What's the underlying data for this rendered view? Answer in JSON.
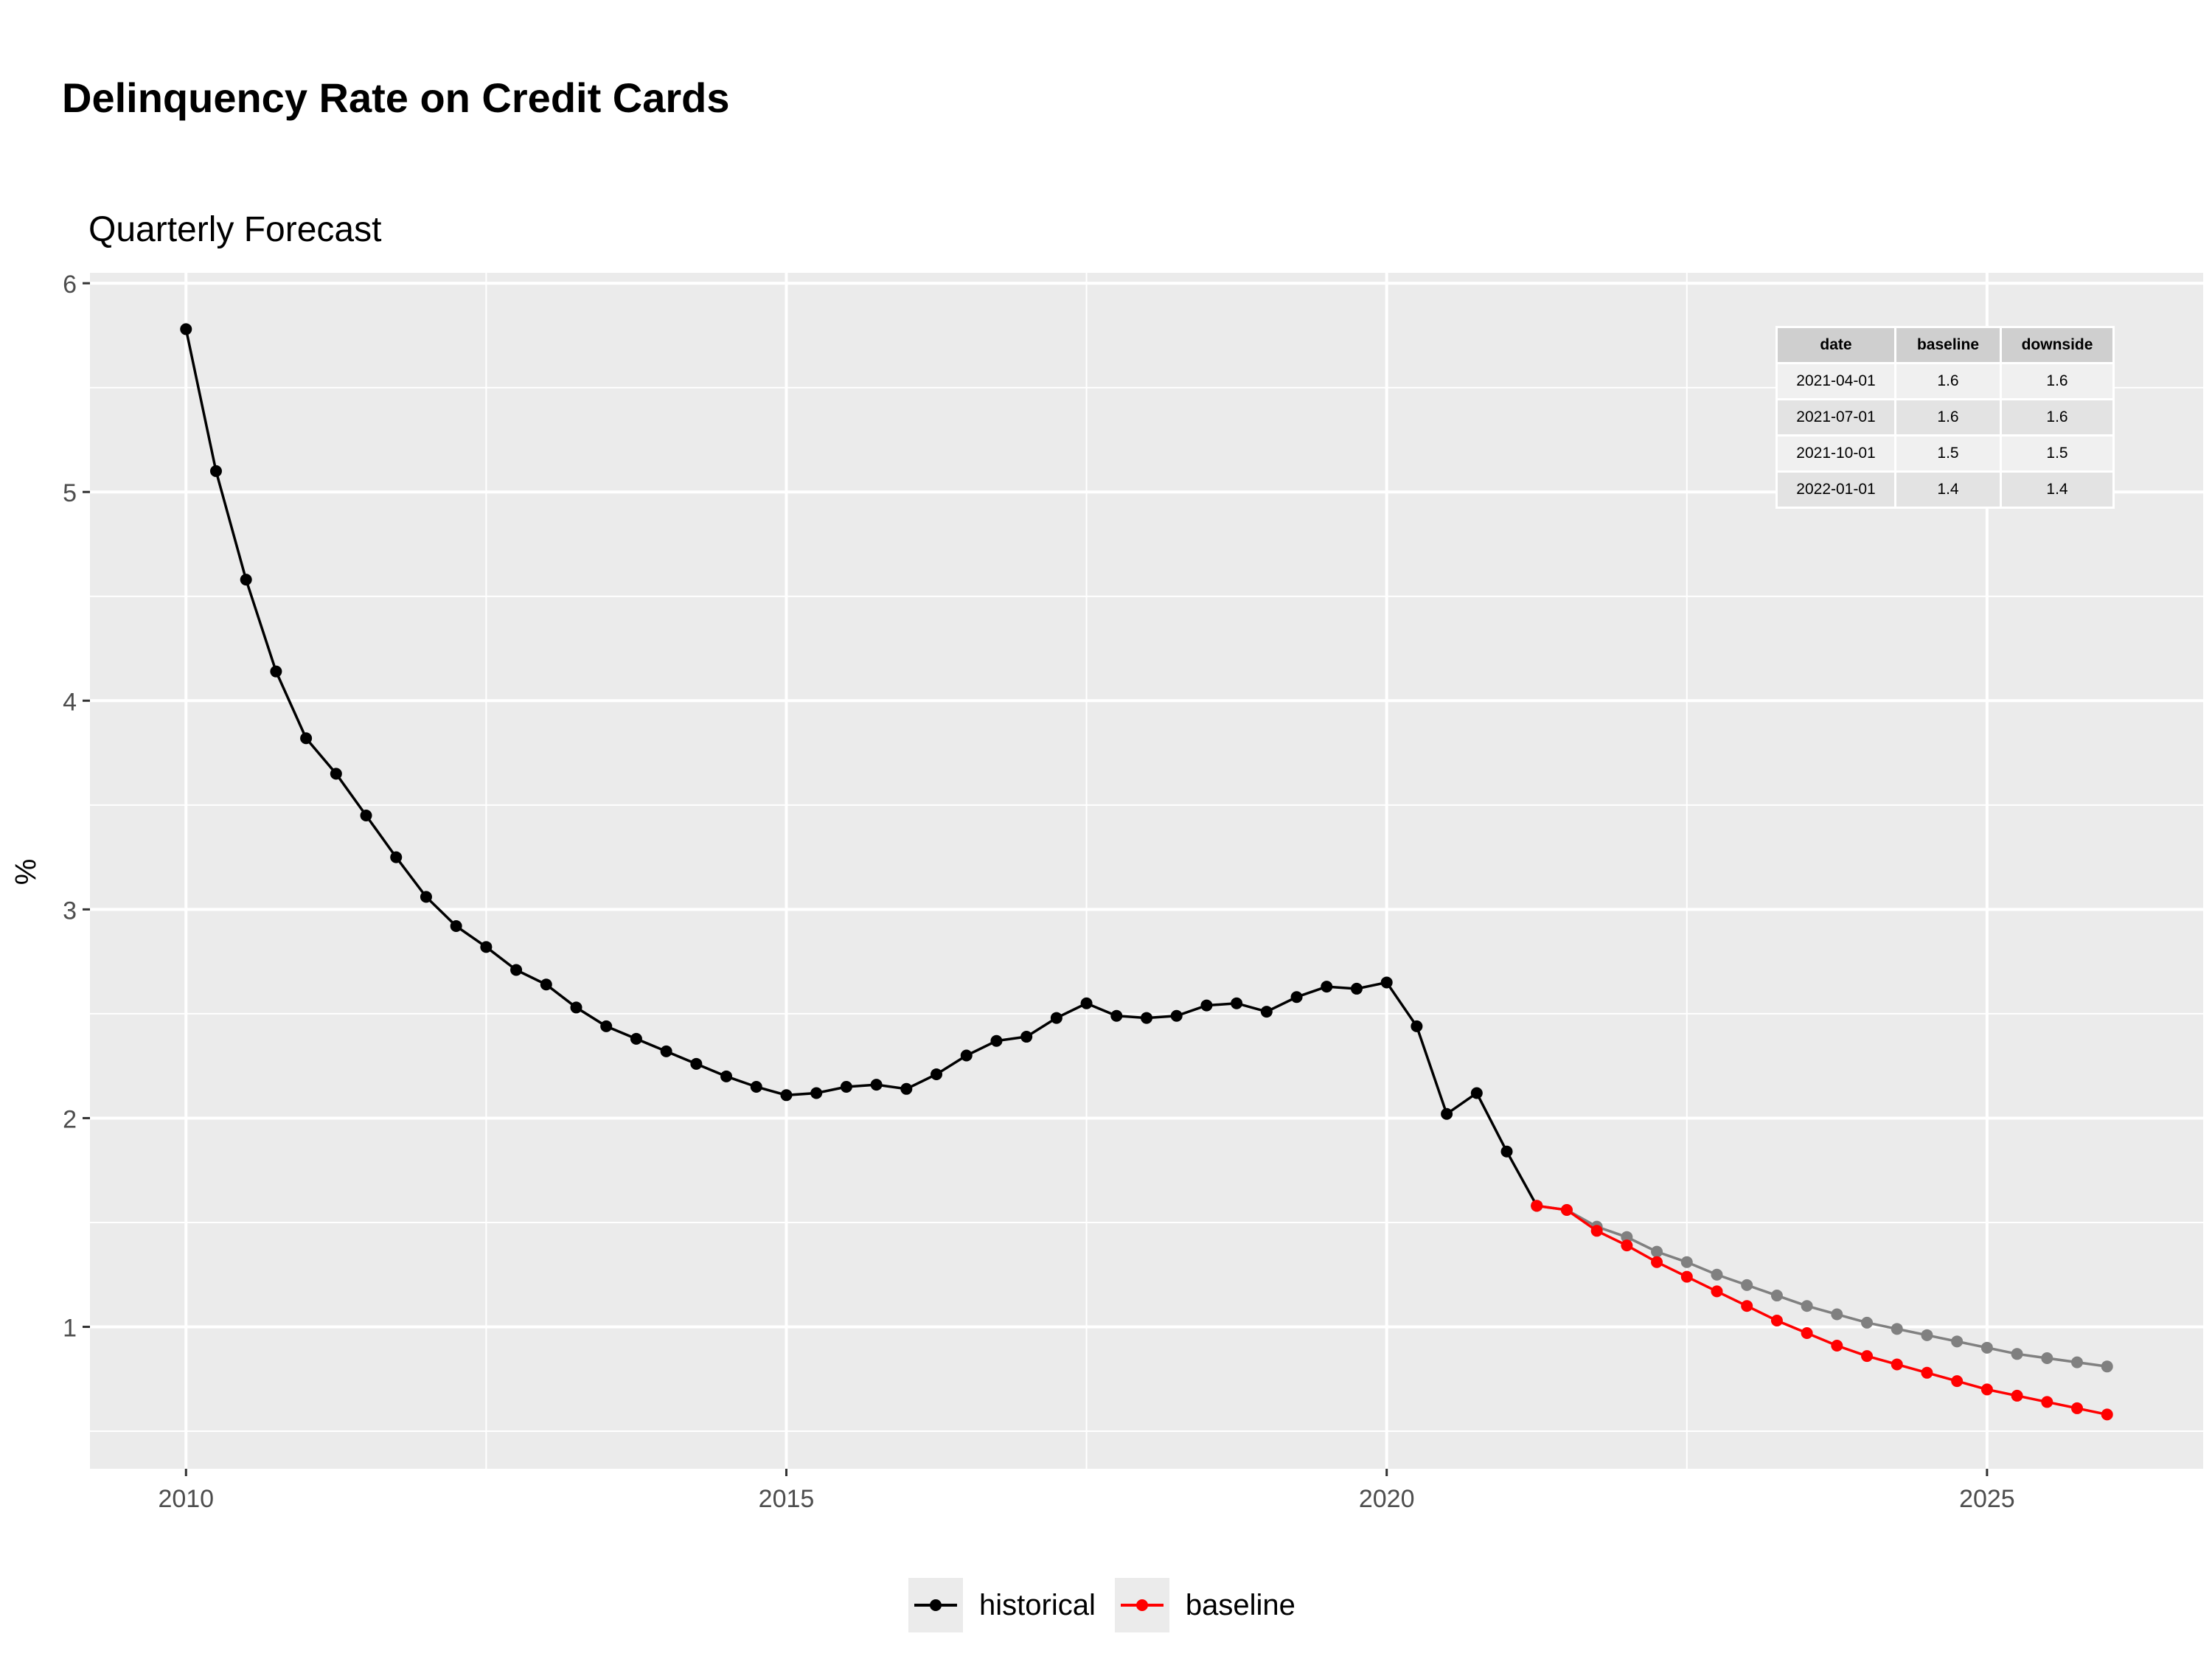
{
  "chart_data": {
    "type": "line",
    "title": "Delinquency Rate on Credit Cards",
    "subtitle": "Quarterly Forecast",
    "xlabel": "",
    "ylabel": "%",
    "xlim": [
      2009.2,
      2026.8
    ],
    "ylim": [
      0.32,
      6.05
    ],
    "x_ticks": [
      2010,
      2015,
      2020,
      2025
    ],
    "x_tick_labels": [
      "2010",
      "2015",
      "2020",
      "2025"
    ],
    "y_ticks": [
      1,
      2,
      3,
      4,
      5,
      6
    ],
    "y_tick_labels": [
      "1",
      "2",
      "3",
      "4",
      "5",
      "6"
    ],
    "grid": true,
    "legend": {
      "position": "bottom",
      "entries": [
        "historical",
        "baseline"
      ]
    },
    "series": [
      {
        "name": "historical",
        "color": "#000000",
        "points": [
          [
            "2010-01-01",
            5.78
          ],
          [
            "2010-04-01",
            5.1
          ],
          [
            "2010-07-01",
            4.58
          ],
          [
            "2010-10-01",
            4.14
          ],
          [
            "2011-01-01",
            3.82
          ],
          [
            "2011-04-01",
            3.65
          ],
          [
            "2011-07-01",
            3.45
          ],
          [
            "2011-10-01",
            3.25
          ],
          [
            "2012-01-01",
            3.06
          ],
          [
            "2012-04-01",
            2.92
          ],
          [
            "2012-07-01",
            2.82
          ],
          [
            "2012-10-01",
            2.71
          ],
          [
            "2013-01-01",
            2.64
          ],
          [
            "2013-04-01",
            2.53
          ],
          [
            "2013-07-01",
            2.44
          ],
          [
            "2013-10-01",
            2.38
          ],
          [
            "2014-01-01",
            2.32
          ],
          [
            "2014-04-01",
            2.26
          ],
          [
            "2014-07-01",
            2.2
          ],
          [
            "2014-10-01",
            2.15
          ],
          [
            "2015-01-01",
            2.11
          ],
          [
            "2015-04-01",
            2.12
          ],
          [
            "2015-07-01",
            2.15
          ],
          [
            "2015-10-01",
            2.16
          ],
          [
            "2016-01-01",
            2.14
          ],
          [
            "2016-04-01",
            2.21
          ],
          [
            "2016-07-01",
            2.3
          ],
          [
            "2016-10-01",
            2.37
          ],
          [
            "2017-01-01",
            2.39
          ],
          [
            "2017-04-01",
            2.48
          ],
          [
            "2017-07-01",
            2.55
          ],
          [
            "2017-10-01",
            2.49
          ],
          [
            "2018-01-01",
            2.48
          ],
          [
            "2018-04-01",
            2.49
          ],
          [
            "2018-07-01",
            2.54
          ],
          [
            "2018-10-01",
            2.55
          ],
          [
            "2019-01-01",
            2.51
          ],
          [
            "2019-04-01",
            2.58
          ],
          [
            "2019-07-01",
            2.63
          ],
          [
            "2019-10-01",
            2.62
          ],
          [
            "2020-01-01",
            2.65
          ],
          [
            "2020-04-01",
            2.44
          ],
          [
            "2020-07-01",
            2.02
          ],
          [
            "2020-10-01",
            2.12
          ],
          [
            "2021-01-01",
            1.84
          ],
          [
            "2021-04-01",
            1.58
          ]
        ]
      },
      {
        "name": "downside",
        "color": "#808080",
        "points": [
          [
            "2021-04-01",
            1.58
          ],
          [
            "2021-07-01",
            1.56
          ],
          [
            "2021-10-01",
            1.48
          ],
          [
            "2022-01-01",
            1.43
          ],
          [
            "2022-04-01",
            1.36
          ],
          [
            "2022-07-01",
            1.31
          ],
          [
            "2022-10-01",
            1.25
          ],
          [
            "2023-01-01",
            1.2
          ],
          [
            "2023-04-01",
            1.15
          ],
          [
            "2023-07-01",
            1.1
          ],
          [
            "2023-10-01",
            1.06
          ],
          [
            "2024-01-01",
            1.02
          ],
          [
            "2024-04-01",
            0.99
          ],
          [
            "2024-07-01",
            0.96
          ],
          [
            "2024-10-01",
            0.93
          ],
          [
            "2025-01-01",
            0.9
          ],
          [
            "2025-04-01",
            0.87
          ],
          [
            "2025-07-01",
            0.85
          ],
          [
            "2025-10-01",
            0.83
          ],
          [
            "2026-01-01",
            0.81
          ]
        ]
      },
      {
        "name": "baseline",
        "color": "#ff0000",
        "points": [
          [
            "2021-04-01",
            1.58
          ],
          [
            "2021-07-01",
            1.56
          ],
          [
            "2021-10-01",
            1.46
          ],
          [
            "2022-01-01",
            1.39
          ],
          [
            "2022-04-01",
            1.31
          ],
          [
            "2022-07-01",
            1.24
          ],
          [
            "2022-10-01",
            1.17
          ],
          [
            "2023-01-01",
            1.1
          ],
          [
            "2023-04-01",
            1.03
          ],
          [
            "2023-07-01",
            0.97
          ],
          [
            "2023-10-01",
            0.91
          ],
          [
            "2024-01-01",
            0.86
          ],
          [
            "2024-04-01",
            0.82
          ],
          [
            "2024-07-01",
            0.78
          ],
          [
            "2024-10-01",
            0.74
          ],
          [
            "2025-01-01",
            0.7
          ],
          [
            "2025-04-01",
            0.67
          ],
          [
            "2025-07-01",
            0.64
          ],
          [
            "2025-10-01",
            0.61
          ],
          [
            "2026-01-01",
            0.58
          ]
        ]
      }
    ],
    "table": {
      "columns": [
        "date",
        "baseline",
        "downside"
      ],
      "rows": [
        [
          "2021-04-01",
          "1.6",
          "1.6"
        ],
        [
          "2021-07-01",
          "1.6",
          "1.6"
        ],
        [
          "2021-10-01",
          "1.5",
          "1.5"
        ],
        [
          "2022-01-01",
          "1.4",
          "1.4"
        ]
      ]
    },
    "colors": {
      "panel_bg": "#ebebeb",
      "grid": "#ffffff",
      "historical": "#000000",
      "baseline": "#ff0000",
      "downside": "#808080"
    }
  }
}
